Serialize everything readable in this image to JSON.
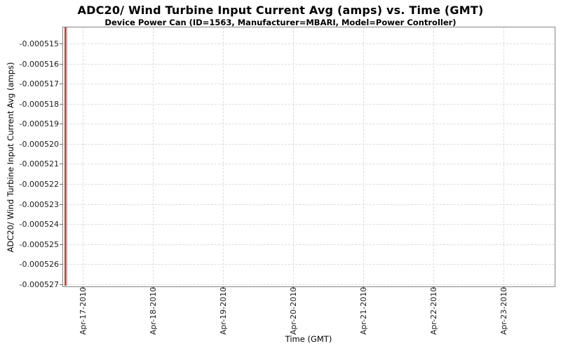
{
  "chart_data": {
    "type": "line",
    "title": "ADC20/ Wind Turbine Input Current Avg (amps) vs. Time (GMT)",
    "subtitle": "Device Power Can (ID=1563, Manufacturer=MBARI, Model=Power Controller)",
    "xlabel": "Time (GMT)",
    "ylabel": "ADC20/ Wind Turbine Input Current Avg (amps)",
    "x_tick_labels": [
      "Apr-17-2010",
      "Apr-18-2010",
      "Apr-19-2010",
      "Apr-20-2010",
      "Apr-21-2010",
      "Apr-22-2010",
      "Apr-23-2010"
    ],
    "y_tick_labels": [
      "-0.000515",
      "-0.000516",
      "-0.000517",
      "-0.000518",
      "-0.000519",
      "-0.000520",
      "-0.000521",
      "-0.000522",
      "-0.000523",
      "-0.000524",
      "-0.000525",
      "-0.000526",
      "-0.000527"
    ],
    "ylim": [
      -0.0005271,
      -0.0005142
    ],
    "grid": true,
    "legend": false,
    "series": [
      {
        "name": "ADC20/ Wind Turbine Input Current Avg (amps)",
        "color": "#9b4b4b",
        "shape": "vertical line at far left edge of plot area, just before the Apr-17-2010 tick, spanning the full visible y-range",
        "x": "Apr-16/17-2010",
        "y_min": -0.000527,
        "y_max": -0.000515
      }
    ]
  },
  "colors": {
    "series_line_dark": "#9b4b4b",
    "series_line_light": "#d4a5a5",
    "plot_border": "#848484",
    "gridline": "#dcdcdc",
    "tick_mark": "#6e6e6e",
    "text": "#000000"
  }
}
